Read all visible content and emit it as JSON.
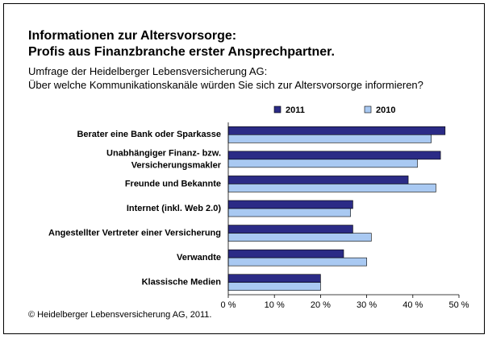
{
  "chart_data": {
    "type": "hbar",
    "title": "Informationen zur Altersvorsorge:\nProfis aus Finanzbranche erster Ansprechpartner.",
    "subtitle": "Umfrage der Heidelberger Lebensversicherung AG:\nÜber welche Kommunikationskanäle würden Sie sich zur Altersvorsorge informieren?",
    "categories": [
      "Berater eine Bank oder Sparkasse",
      "Unabhängiger Finanz- bzw.\nVersicherungsmakler",
      "Freunde und Bekannte",
      "Internet (inkl. Web 2.0)",
      "Angestellter Vertreter einer Versicherung",
      "Verwandte",
      "Klassische Medien"
    ],
    "series": [
      {
        "name": "2011",
        "color": "#2b2b86",
        "values": [
          47,
          46,
          39,
          27,
          27,
          25,
          20
        ]
      },
      {
        "name": "2010",
        "color": "#a9c9f2",
        "values": [
          44,
          41,
          45,
          26.5,
          31,
          30,
          20
        ]
      }
    ],
    "xlim": [
      0,
      50
    ],
    "xticks": [
      {
        "value": 0,
        "label": "0 %"
      },
      {
        "value": 10,
        "label": "10 %"
      },
      {
        "value": 20,
        "label": "20 %"
      },
      {
        "value": 30,
        "label": "30 %"
      },
      {
        "value": 40,
        "label": "40 %"
      },
      {
        "value": 50,
        "label": "50 %"
      }
    ],
    "grid": false,
    "legend": "top",
    "source": "© Heidelberger Lebensversicherung AG, 2011."
  }
}
